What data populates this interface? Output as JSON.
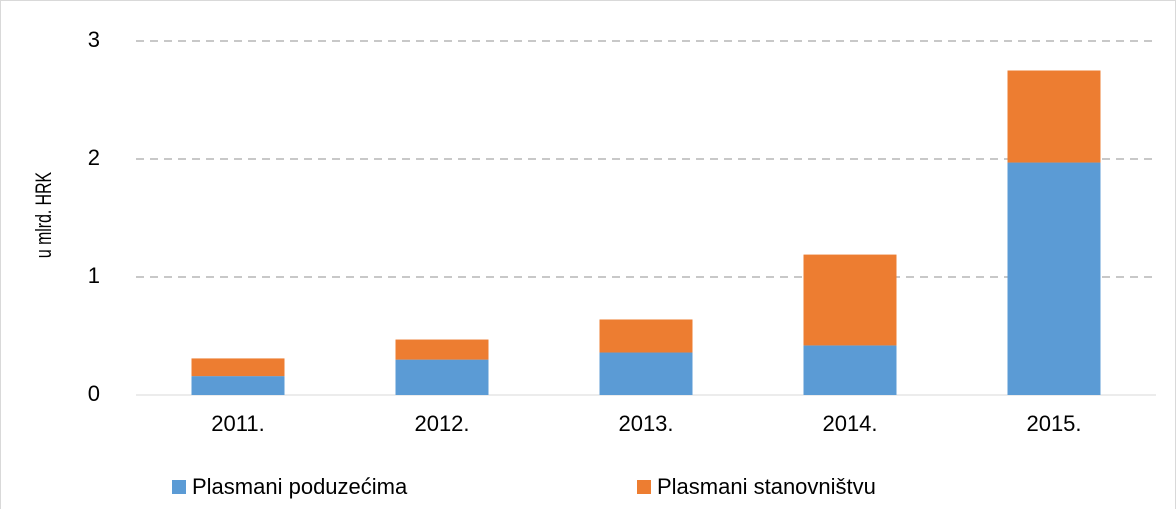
{
  "chart_data": {
    "type": "stacked_bar",
    "y_label": "u mlrd. HRK",
    "categories": [
      "2011.",
      "2012.",
      "2013.",
      "2014.",
      "2015."
    ],
    "series": [
      {
        "name": "Plasmani poduzećima",
        "color": "#5b9bd5",
        "values": [
          0.16,
          0.3,
          0.36,
          0.42,
          1.97
        ]
      },
      {
        "name": "Plasmani stanovništvu",
        "color": "#ed7d31",
        "values": [
          0.15,
          0.17,
          0.28,
          0.77,
          0.78
        ]
      }
    ],
    "ylim": [
      0,
      3
    ],
    "yticks": [
      0,
      1,
      2,
      3
    ],
    "grid": true,
    "legend": "bottom"
  }
}
